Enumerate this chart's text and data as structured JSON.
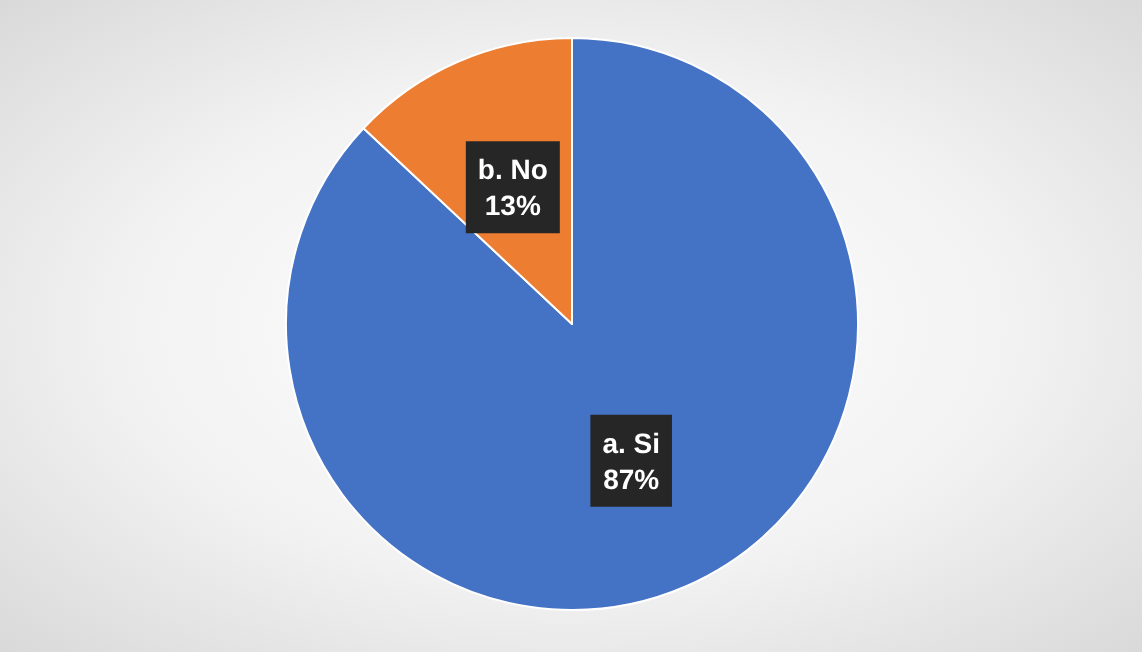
{
  "chart_data": {
    "type": "pie",
    "categories": [
      "a. Si",
      "b. No"
    ],
    "values": [
      87,
      13
    ],
    "value_labels": [
      "87%",
      "13%"
    ],
    "colors": [
      "#4472c4",
      "#ed7d31"
    ],
    "legend": false
  }
}
